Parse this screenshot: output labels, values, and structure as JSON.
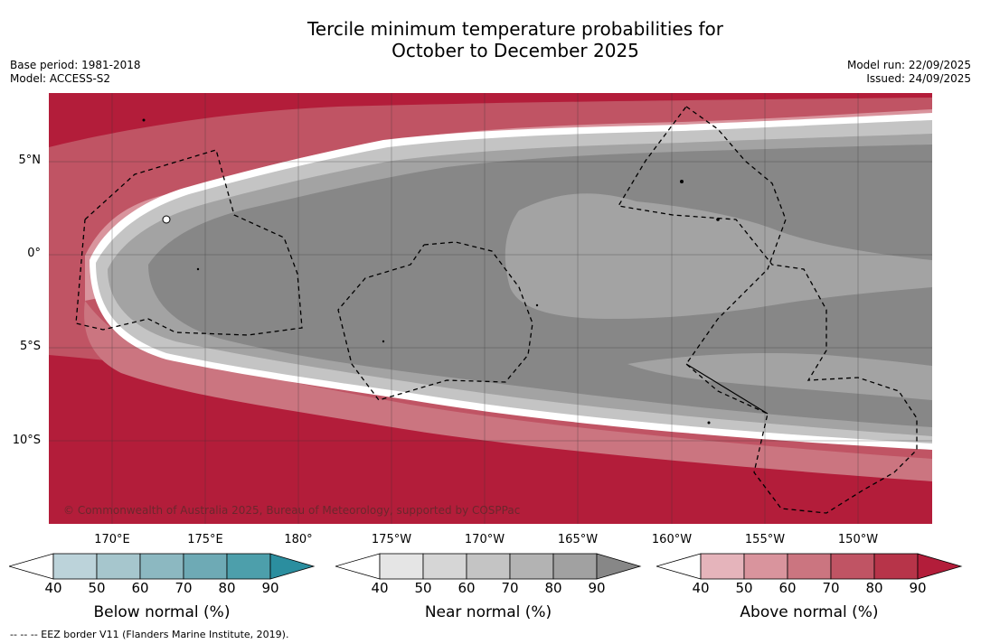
{
  "title": {
    "line1": "Tercile minimum temperature probabilities for",
    "line2": "October to December 2025"
  },
  "meta": {
    "base_period": "Base period: 1981-2018",
    "model": "Model: ACCESS-S2",
    "model_run": "Model run: 22/09/2025",
    "issued": "Issued: 24/09/2025"
  },
  "map": {
    "lat_labels": [
      "5°N",
      "0°",
      "5°S",
      "10°S"
    ],
    "lon_labels": [
      "170°E",
      "175°E",
      "180°",
      "175°W",
      "170°W",
      "165°W",
      "160°W",
      "155°W",
      "150°W"
    ],
    "copyright": "© Commonwealth of Australia 2025, Bureau of Meteorology, supported by COSPPac",
    "colors": {
      "above_dark": "#b31d3a",
      "near_dark": "#878787",
      "near_mid": "#a3a3a3",
      "near_light": "#c4c4c4"
    }
  },
  "legend": {
    "ticks": [
      "40",
      "50",
      "60",
      "70",
      "80",
      "90"
    ],
    "below": {
      "label": "Below normal (%)",
      "colors": [
        "#bcd3da",
        "#a6c6cd",
        "#8cb8c1",
        "#6eaab5",
        "#4d9fab",
        "#2b8e9f"
      ]
    },
    "near": {
      "label": "Near normal (%)",
      "colors": [
        "#e5e5e5",
        "#d6d6d6",
        "#c4c4c4",
        "#b3b3b3",
        "#a1a1a1",
        "#878787"
      ]
    },
    "above": {
      "label": "Above normal (%)",
      "colors": [
        "#e5b4bb",
        "#d9949d",
        "#cb7580",
        "#c05464",
        "#b73449",
        "#b31d3a"
      ]
    }
  },
  "footnote": "--  --  -- EEZ border V11 (Flanders Marine Institute, 2019)."
}
